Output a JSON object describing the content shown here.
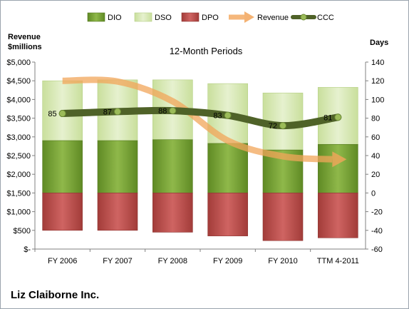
{
  "company": "Liz Claiborne Inc.",
  "colors": {
    "dio": "#77a033",
    "dso": "#d7e9b4",
    "dpo": "#c0504d",
    "revenue": "#f2a55a",
    "ccc": "#4f6228",
    "ccc_marker": "#9bbb59"
  },
  "chart_data": {
    "type": "bar",
    "title": "12-Month Periods",
    "ylabel_left": "Revenue\n$millions",
    "ylabel_right": "Days",
    "categories": [
      "FY 2006",
      "FY 2007",
      "FY 2008",
      "FY 2009",
      "FY 2010",
      "TTM 4-2011"
    ],
    "left_axis": {
      "min": 0,
      "max": 5000,
      "step": 500,
      "tick_labels": [
        "$-",
        "$500",
        "$1,000",
        "$1,500",
        "$2,000",
        "$2,500",
        "$3,000",
        "$3,500",
        "$4,000",
        "$4,500",
        "$5,000"
      ]
    },
    "right_axis": {
      "min": -60,
      "max": 140,
      "step": 20,
      "tick_labels": [
        "-60",
        "-40",
        "-20",
        "0",
        "20",
        "40",
        "60",
        "80",
        "100",
        "120",
        "140"
      ]
    },
    "grid": false,
    "legend_position": "top",
    "legend": [
      "DIO",
      "DSO",
      "DPO",
      "Revenue",
      "CCC"
    ],
    "series": [
      {
        "name": "DIO",
        "type": "stacked-bar",
        "axis": "right",
        "values": [
          56,
          56,
          57,
          53,
          46,
          52
        ]
      },
      {
        "name": "DSO",
        "type": "stacked-bar",
        "axis": "right",
        "values": [
          64,
          65,
          64,
          64,
          61,
          61
        ]
      },
      {
        "name": "DPO",
        "type": "stacked-bar-negative",
        "axis": "right",
        "values": [
          -40,
          -40,
          -42,
          -46,
          -51,
          -48
        ]
      },
      {
        "name": "Revenue",
        "type": "line",
        "axis": "left",
        "values": [
          4500,
          4480,
          3950,
          2900,
          2480,
          2400
        ]
      },
      {
        "name": "CCC",
        "type": "line",
        "axis": "right",
        "values": [
          85,
          87,
          88,
          83,
          72,
          81
        ]
      }
    ],
    "data_labels": [
      "85",
      "87",
      "88",
      "83",
      "72",
      "81"
    ]
  }
}
